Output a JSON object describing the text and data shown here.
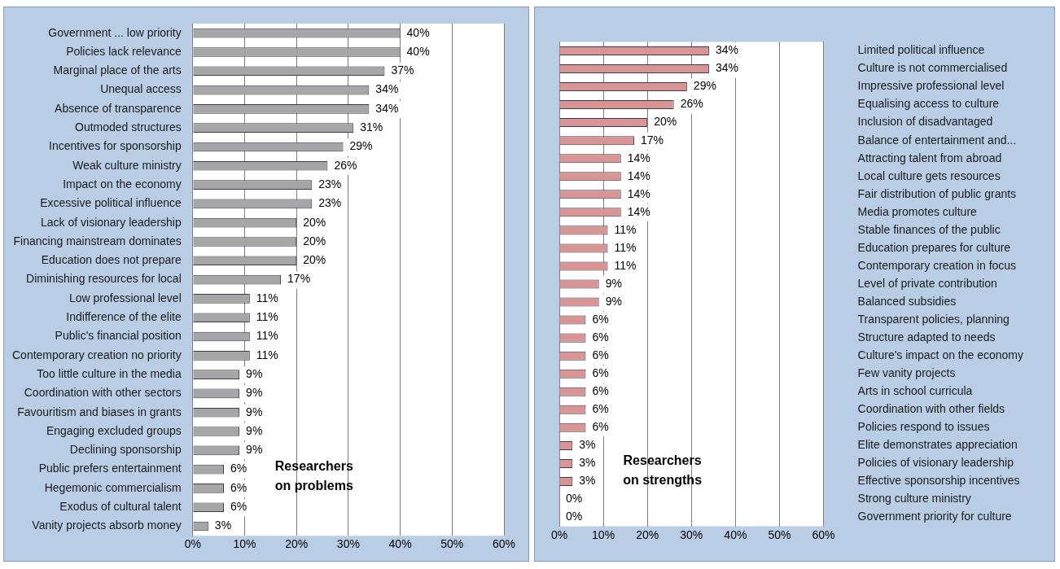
{
  "chart_data": [
    {
      "type": "bar",
      "orientation": "horizontal",
      "categories": [
        "Government ... low priority",
        "Policies lack relevance",
        "Marginal place of the arts",
        "Unequal access",
        "Absence of transparence",
        "Outmoded structures",
        "Incentives for sponsorship",
        "Weak culture ministry",
        "Impact on the economy",
        "Excessive political influence",
        "Lack of visionary leadership",
        "Financing mainstream dominates",
        "Education does not prepare",
        "Diminishing resources for local",
        "Low professional level",
        "Indifference of the elite",
        "Public's financial position",
        "Contemporary creation no priority",
        "Too little culture in the media",
        "Coordination with other sectors",
        "Favouritism and biases in grants",
        "Engaging excluded groups",
        "Declining sponsorship",
        "Public prefers entertainment",
        "Hegemonic commercialism",
        "Exodus of cultural talent",
        "Vanity projects absorb money"
      ],
      "values": [
        40,
        40,
        37,
        34,
        34,
        31,
        29,
        26,
        23,
        23,
        20,
        20,
        20,
        17,
        11,
        11,
        11,
        11,
        9,
        9,
        9,
        9,
        9,
        6,
        6,
        6,
        3
      ],
      "value_labels": [
        "40%",
        "40%",
        "37%",
        "34%",
        "34%",
        "31%",
        "29%",
        "26%",
        "23%",
        "23%",
        "20%",
        "20%",
        "20%",
        "17%",
        "11%",
        "11%",
        "11%",
        "11%",
        "9%",
        "9%",
        "9%",
        "9%",
        "9%",
        "6%",
        "6%",
        "6%",
        "3%"
      ],
      "color": "#a6a6a6",
      "xlim": [
        0,
        60
      ],
      "xticks": [
        {
          "value": 0,
          "label": "0%"
        },
        {
          "value": 10,
          "label": "10%"
        },
        {
          "value": 20,
          "label": "20%"
        },
        {
          "value": 30,
          "label": "30%"
        },
        {
          "value": 40,
          "label": "40%"
        },
        {
          "value": 50,
          "label": "50%"
        },
        {
          "value": 60,
          "label": "60%"
        }
      ],
      "grid": "x",
      "legend": false,
      "annotations": [
        "Researchers on problems"
      ]
    },
    {
      "type": "bar",
      "orientation": "horizontal",
      "categories": [
        "Limited political influence",
        "Culture is not commercialised",
        "Impressive professional level",
        "Equalising access to culture",
        "Inclusion of disadvantaged",
        "Balance of entertainment and...",
        "Attracting talent from abroad",
        "Local culture gets resources",
        "Fair distribution of public grants",
        "Media promotes culture",
        "Stable finances of the public",
        "Education prepares for culture",
        "Contemporary creation in focus",
        "Level of private contribution",
        "Balanced subsidies",
        "Transparent policies, planning",
        "Structure adapted to needs",
        "Culture's impact on the economy",
        "Few vanity projects",
        "Arts in school curricula",
        "Coordination with other fields",
        "Policies respond to issues",
        "Elite demonstrates appreciation",
        "Policies of visionary leadership",
        "Effective sponsorship incentives",
        "Strong culture ministry",
        "Government priority for culture"
      ],
      "values": [
        34,
        34,
        29,
        26,
        20,
        17,
        14,
        14,
        14,
        14,
        11,
        11,
        11,
        9,
        9,
        6,
        6,
        6,
        6,
        6,
        6,
        6,
        3,
        3,
        3,
        0,
        0
      ],
      "value_labels": [
        "34%",
        "34%",
        "29%",
        "26%",
        "20%",
        "17%",
        "14%",
        "14%",
        "14%",
        "14%",
        "11%",
        "11%",
        "11%",
        "9%",
        "9%",
        "6%",
        "6%",
        "6%",
        "6%",
        "6%",
        "6%",
        "6%",
        "3%",
        "3%",
        "3%",
        "0%",
        "0%"
      ],
      "color": "#d99594",
      "xlim": [
        0,
        60
      ],
      "xticks": [
        {
          "value": 0,
          "label": "0%"
        },
        {
          "value": 10,
          "label": "10%"
        },
        {
          "value": 20,
          "label": "20%"
        },
        {
          "value": 30,
          "label": "30%"
        },
        {
          "value": 40,
          "label": "40%"
        },
        {
          "value": 50,
          "label": "50%"
        },
        {
          "value": 60,
          "label": "60%"
        }
      ],
      "grid": "x",
      "legend": false,
      "annotations": [
        "Researchers on strengths"
      ]
    }
  ]
}
